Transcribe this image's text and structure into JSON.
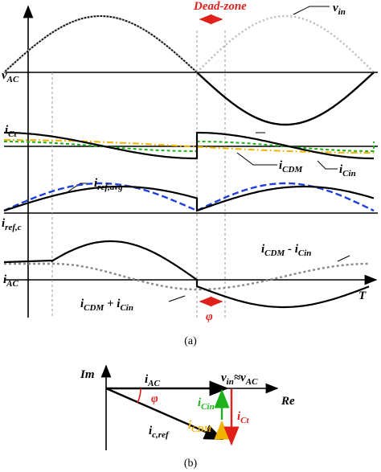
{
  "figure_a": {
    "caption": "(a)",
    "labels": {
      "dead_zone": [
        "Dead-zone"
      ],
      "v_in": [
        "v",
        "in"
      ],
      "v_ac": [
        "v",
        "AC"
      ],
      "i_ct": [
        "i",
        "Ct"
      ],
      "i_cdm": [
        "i",
        "CDM"
      ],
      "i_cin": [
        "i",
        "Cin"
      ],
      "i_ref_avg": [
        "i",
        "ref,avg"
      ],
      "i_ref_c": [
        "i",
        "ref,c"
      ],
      "i_cdm_minus_cin": [
        "i",
        "CDM",
        " - i",
        "Cin"
      ],
      "i_ac": [
        "i",
        "AC"
      ],
      "i_cdm_plus_cin": [
        "i",
        "CDM",
        " + i",
        "Cin"
      ],
      "t_axis": [
        "T"
      ],
      "phi": [
        "φ"
      ]
    }
  },
  "figure_b": {
    "caption": "(b)",
    "labels": {
      "im": [
        "Im"
      ],
      "re": [
        "Re"
      ],
      "i_ac": [
        "i",
        "AC"
      ],
      "v_in_ac": [
        "v",
        "in",
        "≈v",
        "AC"
      ],
      "phi": [
        "φ"
      ],
      "i_cin": [
        "i",
        "Cin"
      ],
      "i_cdm": [
        "i",
        "CDM"
      ],
      "i_ct": [
        "i",
        "Ct"
      ],
      "i_c_ref": [
        "i",
        "c,ref"
      ]
    }
  }
}
